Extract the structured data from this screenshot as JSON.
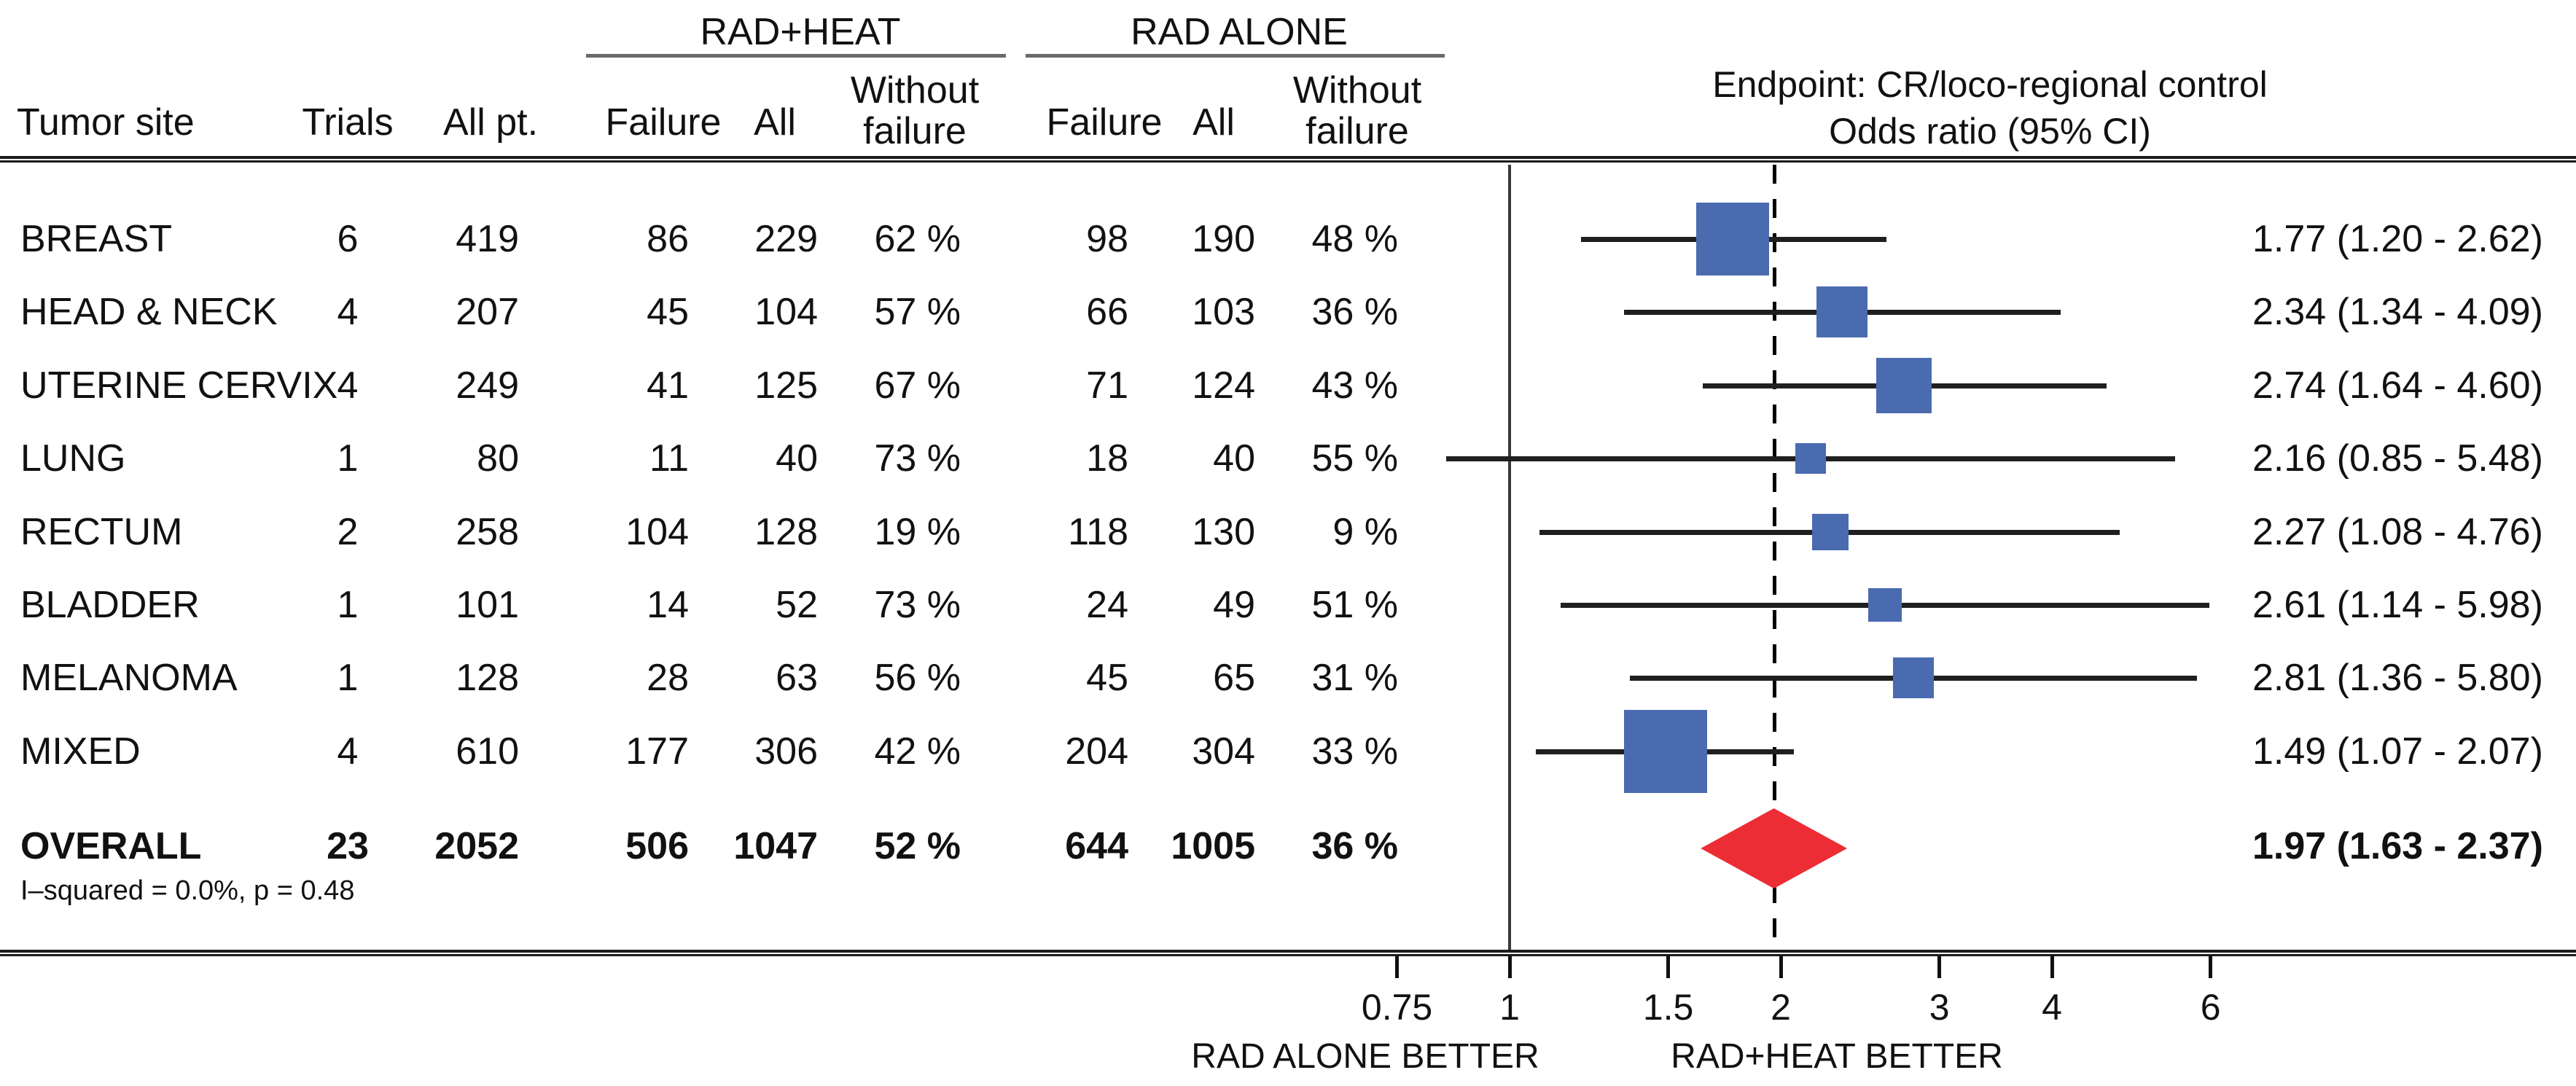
{
  "figure": {
    "column_headers": {
      "tumor_site": "Tumor site",
      "trials": "Trials",
      "all_pt": "All pt.",
      "heat_failure": "Failure",
      "heat_all": "All",
      "heat_without": "Without\nfailure",
      "rad_failure": "Failure",
      "rad_all": "All",
      "rad_without": "Without\nfailure"
    },
    "group_headers": {
      "heat": "RAD+HEAT",
      "rad": "RAD ALONE"
    },
    "title_line1": "Endpoint: CR/loco-regional control",
    "title_line2": "Odds ratio (95% CI)",
    "axis_captions": {
      "left": "RAD ALONE BETTER",
      "right": "RAD+HEAT BETTER"
    },
    "colors": {
      "square_blue": "#4a6bb0",
      "diamond_red": "#ed2d35",
      "line_black": "#1f1f1f"
    }
  },
  "chart_data": {
    "type": "scatter",
    "variant": "forest-plot",
    "x_scale": "log",
    "xlabel": "Odds ratio (95% CI)",
    "x_ticks": [
      {
        "v": 0.75,
        "label": "0.75"
      },
      {
        "v": 1,
        "label": "1"
      },
      {
        "v": 1.5,
        "label": "1.5"
      },
      {
        "v": 2,
        "label": "2"
      },
      {
        "v": 3,
        "label": "3"
      },
      {
        "v": 4,
        "label": "4"
      },
      {
        "v": 6,
        "label": "6"
      }
    ],
    "reference_line": 1,
    "overall_line": 1.97,
    "rows": [
      {
        "site": "BREAST",
        "trials": "6",
        "all_pt": "419",
        "heat_failure": "86",
        "heat_all": "229",
        "heat_pct": "62 %",
        "rad_failure": "98",
        "rad_all": "190",
        "rad_pct": "48 %",
        "or": 1.77,
        "lo": 1.2,
        "hi": 2.62,
        "or_text": "1.77 (1.20 - 2.62)",
        "marker_size": 100
      },
      {
        "site": "HEAD & NECK",
        "trials": "4",
        "all_pt": "207",
        "heat_failure": "45",
        "heat_all": "104",
        "heat_pct": "57 %",
        "rad_failure": "66",
        "rad_all": "103",
        "rad_pct": "36 %",
        "or": 2.34,
        "lo": 1.34,
        "hi": 4.09,
        "or_text": "2.34 (1.34 - 4.09)",
        "marker_size": 70
      },
      {
        "site": "UTERINE CERVIX",
        "trials": "4",
        "all_pt": "249",
        "heat_failure": "41",
        "heat_all": "125",
        "heat_pct": "67 %",
        "rad_failure": "71",
        "rad_all": "124",
        "rad_pct": "43 %",
        "or": 2.74,
        "lo": 1.64,
        "hi": 4.6,
        "or_text": "2.74 (1.64 - 4.60)",
        "marker_size": 76
      },
      {
        "site": "LUNG",
        "trials": "1",
        "all_pt": "80",
        "heat_failure": "11",
        "heat_all": "40",
        "heat_pct": "73 %",
        "rad_failure": "18",
        "rad_all": "40",
        "rad_pct": "55 %",
        "or": 2.16,
        "lo": 0.85,
        "hi": 5.48,
        "or_text": "2.16 (0.85 - 5.48)",
        "marker_size": 42
      },
      {
        "site": "RECTUM",
        "trials": "2",
        "all_pt": "258",
        "heat_failure": "104",
        "heat_all": "128",
        "heat_pct": "19 %",
        "rad_failure": "118",
        "rad_all": "130",
        "rad_pct": "9 %",
        "or": 2.27,
        "lo": 1.08,
        "hi": 4.76,
        "or_text": "2.27 (1.08 - 4.76)",
        "marker_size": 50
      },
      {
        "site": "BLADDER",
        "trials": "1",
        "all_pt": "101",
        "heat_failure": "14",
        "heat_all": "52",
        "heat_pct": "73 %",
        "rad_failure": "24",
        "rad_all": "49",
        "rad_pct": "51 %",
        "or": 2.61,
        "lo": 1.14,
        "hi": 5.98,
        "or_text": "2.61 (1.14 - 5.98)",
        "marker_size": 46
      },
      {
        "site": "MELANOMA",
        "trials": "1",
        "all_pt": "128",
        "heat_failure": "28",
        "heat_all": "63",
        "heat_pct": "56 %",
        "rad_failure": "45",
        "rad_all": "65",
        "rad_pct": "31 %",
        "or": 2.81,
        "lo": 1.36,
        "hi": 5.8,
        "or_text": "2.81 (1.36 - 5.80)",
        "marker_size": 56
      },
      {
        "site": "MIXED",
        "trials": "4",
        "all_pt": "610",
        "heat_failure": "177",
        "heat_all": "306",
        "heat_pct": "42 %",
        "rad_failure": "204",
        "rad_all": "304",
        "rad_pct": "33 %",
        "or": 1.49,
        "lo": 1.07,
        "hi": 2.07,
        "or_text": "1.49 (1.07 - 2.07)",
        "marker_size": 114
      }
    ],
    "overall": {
      "site": "OVERALL",
      "trials": "23",
      "all_pt": "2052",
      "heat_failure": "506",
      "heat_all": "1047",
      "heat_pct": "52 %",
      "rad_failure": "644",
      "rad_all": "1005",
      "rad_pct": "36 %",
      "or": 1.97,
      "lo": 1.63,
      "hi": 2.37,
      "or_text": "1.97 (1.63 - 2.37)",
      "heterogeneity": "I–squared = 0.0%, p = 0.48"
    }
  }
}
